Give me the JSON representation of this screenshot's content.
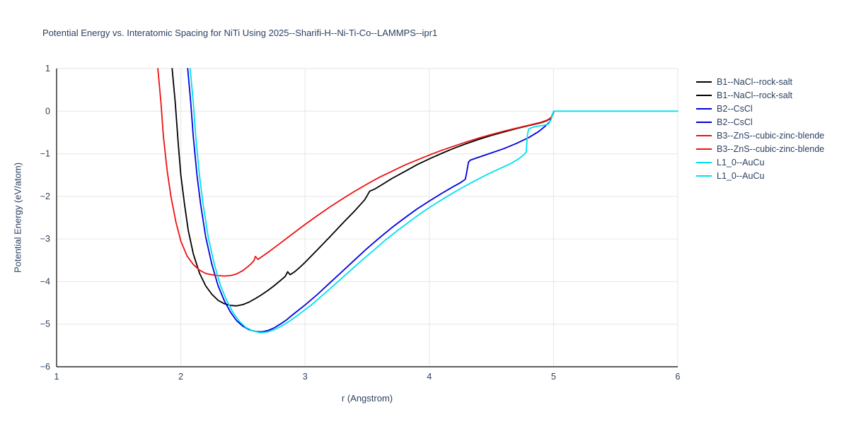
{
  "chart_data": {
    "type": "line",
    "title": "Potential Energy vs. Interatomic Spacing for NiTi Using 2025--Sharifi-H--Ni-Ti-Co--LAMMPS--ipr1",
    "xlabel": "r (Angstrom)",
    "ylabel": "Potential Energy (eV/atom)",
    "xlim": [
      1,
      6
    ],
    "ylim": [
      -6,
      1
    ],
    "x_ticks": [
      1,
      2,
      3,
      4,
      5,
      6
    ],
    "x_tick_labels": [
      "1",
      "2",
      "3",
      "4",
      "5",
      "6"
    ],
    "y_ticks": [
      -6,
      -5,
      -4,
      -3,
      -2,
      -1,
      0,
      1
    ],
    "y_tick_labels": [
      "−6",
      "−5",
      "−4",
      "−3",
      "−2",
      "−1",
      "0",
      "1"
    ],
    "grid": true,
    "legend_position": "right",
    "colors": {
      "text": "#2a3f5f",
      "grid": "#e6e6e6",
      "axis_line": "#000000",
      "background": "#ffffff",
      "black": "#000000",
      "blue": "#0000e0",
      "red": "#ee1111",
      "cyan": "#00e0ee"
    },
    "legend": [
      {
        "label": "B1--NaCl--rock-salt",
        "color": "#000000"
      },
      {
        "label": "B1--NaCl--rock-salt",
        "color": "#000000"
      },
      {
        "label": "B2--CsCl",
        "color": "#0000e0"
      },
      {
        "label": "B2--CsCl",
        "color": "#0000e0"
      },
      {
        "label": "B3--ZnS--cubic-zinc-blende",
        "color": "#ee1111"
      },
      {
        "label": "B3--ZnS--cubic-zinc-blende",
        "color": "#ee1111"
      },
      {
        "label": "L1_0--AuCu",
        "color": "#00e0ee"
      },
      {
        "label": "L1_0--AuCu",
        "color": "#00e0ee"
      }
    ],
    "series": [
      {
        "name": "B1--NaCl--rock-salt",
        "color": "#000000",
        "points": [
          [
            1.93,
            1.0
          ],
          [
            1.955,
            0.2
          ],
          [
            1.98,
            -0.8
          ],
          [
            2.0,
            -1.5
          ],
          [
            2.03,
            -2.2
          ],
          [
            2.06,
            -2.8
          ],
          [
            2.1,
            -3.35
          ],
          [
            2.15,
            -3.8
          ],
          [
            2.2,
            -4.1
          ],
          [
            2.25,
            -4.3
          ],
          [
            2.3,
            -4.44
          ],
          [
            2.35,
            -4.52
          ],
          [
            2.4,
            -4.56
          ],
          [
            2.45,
            -4.57
          ],
          [
            2.5,
            -4.54
          ],
          [
            2.55,
            -4.48
          ],
          [
            2.6,
            -4.4
          ],
          [
            2.65,
            -4.31
          ],
          [
            2.7,
            -4.21
          ],
          [
            2.75,
            -4.1
          ],
          [
            2.8,
            -3.98
          ],
          [
            2.84,
            -3.88
          ],
          [
            2.86,
            -3.77
          ],
          [
            2.88,
            -3.84
          ],
          [
            2.92,
            -3.76
          ],
          [
            2.96,
            -3.66
          ],
          [
            3.0,
            -3.55
          ],
          [
            3.1,
            -3.25
          ],
          [
            3.2,
            -2.95
          ],
          [
            3.3,
            -2.64
          ],
          [
            3.4,
            -2.34
          ],
          [
            3.48,
            -2.08
          ],
          [
            3.5,
            -1.98
          ],
          [
            3.52,
            -1.88
          ],
          [
            3.56,
            -1.83
          ],
          [
            3.6,
            -1.76
          ],
          [
            3.7,
            -1.58
          ],
          [
            3.8,
            -1.42
          ],
          [
            3.9,
            -1.26
          ],
          [
            4.0,
            -1.12
          ],
          [
            4.1,
            -0.99
          ],
          [
            4.2,
            -0.87
          ],
          [
            4.3,
            -0.76
          ],
          [
            4.4,
            -0.66
          ],
          [
            4.5,
            -0.57
          ],
          [
            4.6,
            -0.49
          ],
          [
            4.7,
            -0.41
          ],
          [
            4.8,
            -0.34
          ],
          [
            4.9,
            -0.27
          ],
          [
            4.95,
            -0.22
          ],
          [
            4.98,
            -0.16
          ],
          [
            5.0,
            -0.03
          ]
        ]
      },
      {
        "name": "B2--CsCl",
        "color": "#0000e0",
        "points": [
          [
            2.055,
            1.0
          ],
          [
            2.08,
            0.2
          ],
          [
            2.1,
            -0.6
          ],
          [
            2.13,
            -1.5
          ],
          [
            2.16,
            -2.2
          ],
          [
            2.2,
            -2.95
          ],
          [
            2.25,
            -3.6
          ],
          [
            2.3,
            -4.1
          ],
          [
            2.35,
            -4.45
          ],
          [
            2.4,
            -4.72
          ],
          [
            2.45,
            -4.92
          ],
          [
            2.5,
            -5.05
          ],
          [
            2.55,
            -5.13
          ],
          [
            2.6,
            -5.17
          ],
          [
            2.65,
            -5.18
          ],
          [
            2.7,
            -5.15
          ],
          [
            2.75,
            -5.09
          ],
          [
            2.8,
            -5.0
          ],
          [
            2.85,
            -4.9
          ],
          [
            2.9,
            -4.78
          ],
          [
            3.0,
            -4.55
          ],
          [
            3.1,
            -4.3
          ],
          [
            3.2,
            -4.03
          ],
          [
            3.3,
            -3.76
          ],
          [
            3.4,
            -3.49
          ],
          [
            3.5,
            -3.22
          ],
          [
            3.6,
            -2.97
          ],
          [
            3.7,
            -2.73
          ],
          [
            3.8,
            -2.51
          ],
          [
            3.9,
            -2.3
          ],
          [
            4.0,
            -2.11
          ],
          [
            4.1,
            -1.93
          ],
          [
            4.2,
            -1.76
          ],
          [
            4.25,
            -1.68
          ],
          [
            4.29,
            -1.6
          ],
          [
            4.3,
            -1.45
          ],
          [
            4.315,
            -1.2
          ],
          [
            4.33,
            -1.15
          ],
          [
            4.4,
            -1.08
          ],
          [
            4.5,
            -0.98
          ],
          [
            4.6,
            -0.88
          ],
          [
            4.7,
            -0.76
          ],
          [
            4.8,
            -0.62
          ],
          [
            4.88,
            -0.48
          ],
          [
            4.93,
            -0.36
          ],
          [
            4.97,
            -0.25
          ],
          [
            5.0,
            -0.03
          ]
        ]
      },
      {
        "name": "B3--ZnS--cubic-zinc-blende",
        "color": "#ee1111",
        "points": [
          [
            1.815,
            1.0
          ],
          [
            1.84,
            0.2
          ],
          [
            1.86,
            -0.6
          ],
          [
            1.89,
            -1.4
          ],
          [
            1.92,
            -2.0
          ],
          [
            1.96,
            -2.6
          ],
          [
            2.0,
            -3.05
          ],
          [
            2.05,
            -3.4
          ],
          [
            2.1,
            -3.6
          ],
          [
            2.15,
            -3.73
          ],
          [
            2.2,
            -3.81
          ],
          [
            2.25,
            -3.84
          ],
          [
            2.3,
            -3.86
          ],
          [
            2.35,
            -3.87
          ],
          [
            2.4,
            -3.86
          ],
          [
            2.45,
            -3.82
          ],
          [
            2.5,
            -3.74
          ],
          [
            2.54,
            -3.65
          ],
          [
            2.57,
            -3.57
          ],
          [
            2.59,
            -3.5
          ],
          [
            2.6,
            -3.41
          ],
          [
            2.62,
            -3.48
          ],
          [
            2.66,
            -3.4
          ],
          [
            2.7,
            -3.32
          ],
          [
            2.8,
            -3.1
          ],
          [
            2.9,
            -2.88
          ],
          [
            3.0,
            -2.66
          ],
          [
            3.1,
            -2.45
          ],
          [
            3.2,
            -2.25
          ],
          [
            3.3,
            -2.06
          ],
          [
            3.4,
            -1.88
          ],
          [
            3.5,
            -1.71
          ],
          [
            3.6,
            -1.55
          ],
          [
            3.7,
            -1.41
          ],
          [
            3.8,
            -1.27
          ],
          [
            3.9,
            -1.15
          ],
          [
            4.0,
            -1.03
          ],
          [
            4.1,
            -0.92
          ],
          [
            4.2,
            -0.82
          ],
          [
            4.3,
            -0.72
          ],
          [
            4.4,
            -0.63
          ],
          [
            4.5,
            -0.55
          ],
          [
            4.6,
            -0.47
          ],
          [
            4.7,
            -0.4
          ],
          [
            4.8,
            -0.33
          ],
          [
            4.9,
            -0.26
          ],
          [
            4.95,
            -0.21
          ],
          [
            4.98,
            -0.15
          ],
          [
            5.0,
            -0.02
          ]
        ]
      },
      {
        "name": "L1_0--AuCu",
        "color": "#00e0ee",
        "points": [
          [
            2.075,
            1.0
          ],
          [
            2.1,
            0.2
          ],
          [
            2.12,
            -0.6
          ],
          [
            2.15,
            -1.5
          ],
          [
            2.18,
            -2.2
          ],
          [
            2.22,
            -2.95
          ],
          [
            2.27,
            -3.6
          ],
          [
            2.32,
            -4.1
          ],
          [
            2.37,
            -4.45
          ],
          [
            2.42,
            -4.73
          ],
          [
            2.47,
            -4.93
          ],
          [
            2.52,
            -5.07
          ],
          [
            2.58,
            -5.16
          ],
          [
            2.64,
            -5.2
          ],
          [
            2.7,
            -5.18
          ],
          [
            2.76,
            -5.12
          ],
          [
            2.82,
            -5.03
          ],
          [
            2.88,
            -4.92
          ],
          [
            2.95,
            -4.77
          ],
          [
            3.05,
            -4.55
          ],
          [
            3.15,
            -4.3
          ],
          [
            3.25,
            -4.04
          ],
          [
            3.35,
            -3.78
          ],
          [
            3.45,
            -3.52
          ],
          [
            3.55,
            -3.27
          ],
          [
            3.65,
            -3.02
          ],
          [
            3.75,
            -2.79
          ],
          [
            3.85,
            -2.57
          ],
          [
            3.95,
            -2.36
          ],
          [
            4.05,
            -2.17
          ],
          [
            4.15,
            -1.99
          ],
          [
            4.25,
            -1.82
          ],
          [
            4.35,
            -1.66
          ],
          [
            4.45,
            -1.51
          ],
          [
            4.55,
            -1.37
          ],
          [
            4.65,
            -1.24
          ],
          [
            4.72,
            -1.12
          ],
          [
            4.77,
            -1.0
          ],
          [
            4.78,
            -0.95
          ],
          [
            4.79,
            -0.55
          ],
          [
            4.8,
            -0.42
          ],
          [
            4.83,
            -0.38
          ],
          [
            4.88,
            -0.35
          ],
          [
            4.93,
            -0.33
          ],
          [
            4.96,
            -0.3
          ],
          [
            4.98,
            -0.2
          ],
          [
            5.0,
            0.0
          ],
          [
            6.0,
            0.0
          ]
        ]
      }
    ]
  }
}
